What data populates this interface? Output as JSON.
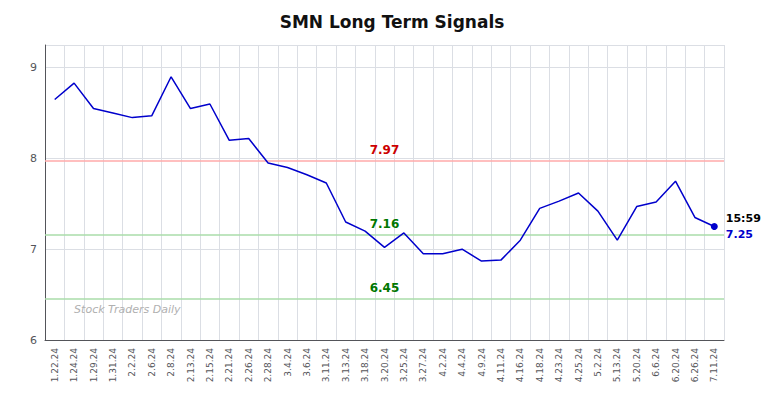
{
  "chart_data": {
    "type": "line",
    "title": "SMN Long Term Signals",
    "categories": [
      "1.22.24",
      "1.24.24",
      "1.29.24",
      "1.31.24",
      "2.2.24",
      "2.6.24",
      "2.8.24",
      "2.13.24",
      "2.15.24",
      "2.21.24",
      "2.26.24",
      "2.28.24",
      "3.4.24",
      "3.6.24",
      "3.11.24",
      "3.13.24",
      "3.18.24",
      "3.20.24",
      "3.25.24",
      "3.27.24",
      "4.2.24",
      "4.4.24",
      "4.9.24",
      "4.11.24",
      "4.16.24",
      "4.18.24",
      "4.23.24",
      "4.25.24",
      "5.2.24",
      "5.13.24",
      "5.20.24",
      "6.6.24",
      "6.20.24",
      "6.26.24",
      "7.11.24"
    ],
    "values": [
      8.65,
      8.83,
      8.55,
      8.5,
      8.45,
      8.47,
      8.9,
      8.55,
      8.6,
      8.2,
      8.22,
      7.95,
      7.9,
      7.82,
      7.73,
      7.3,
      7.2,
      7.02,
      7.18,
      6.95,
      6.95,
      7.0,
      6.87,
      6.88,
      7.1,
      7.45,
      7.53,
      7.62,
      7.42,
      7.1,
      7.47,
      7.52,
      7.75,
      7.35,
      7.25
    ],
    "color": "#0000cc",
    "ylim": [
      6.0,
      9.25
    ],
    "yticks": [
      6,
      7,
      8,
      9
    ],
    "grid": true,
    "reference_lines": [
      {
        "value": 7.97,
        "color": "#ffaaaa",
        "label": "7.97",
        "label_color": "#cc0000"
      },
      {
        "value": 7.16,
        "color": "#aaddaa",
        "label": "7.16",
        "label_color": "#007700"
      },
      {
        "value": 6.45,
        "color": "#aaddaa",
        "label": "6.45",
        "label_color": "#007700"
      }
    ],
    "last_point": {
      "label": "15:59",
      "value_label": "7.25",
      "color": "#0000cc"
    },
    "watermark": {
      "text": "Stock Traders Daily",
      "color": "#b0b0b0"
    }
  }
}
